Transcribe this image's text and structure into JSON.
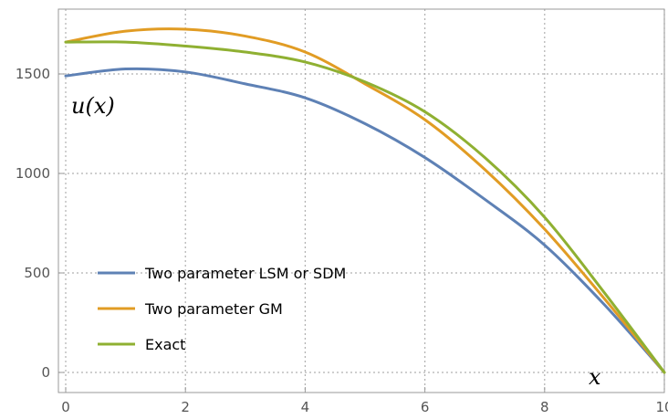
{
  "chart_data": {
    "type": "line",
    "title": "",
    "xlabel": "x",
    "ylabel": "u(x)",
    "xlim": [
      0,
      10
    ],
    "ylim": [
      0,
      1800
    ],
    "xticks": [
      "0",
      "2",
      "4",
      "6",
      "8",
      "10"
    ],
    "yticks": [
      "0",
      "500",
      "1000",
      "1500"
    ],
    "grid": true,
    "legend_position": "bottom-left",
    "series": [
      {
        "name": "Two parameter LSM or SDM",
        "color": "#5e81b5",
        "x": [
          0,
          1,
          2,
          3,
          4,
          5,
          6,
          7,
          8,
          9,
          10
        ],
        "y": [
          1490,
          1525,
          1510,
          1450,
          1380,
          1250,
          1080,
          870,
          640,
          340,
          0
        ]
      },
      {
        "name": "Two parameter GM",
        "color": "#e19c24",
        "x": [
          0,
          1,
          2,
          3,
          4,
          5,
          6,
          7,
          8,
          9,
          10
        ],
        "y": [
          1660,
          1715,
          1725,
          1690,
          1610,
          1450,
          1270,
          1020,
          720,
          370,
          0
        ]
      },
      {
        "name": "Exact",
        "color": "#8fb032",
        "x": [
          0,
          1,
          2,
          3,
          4,
          5,
          6,
          7,
          8,
          9,
          10
        ],
        "y": [
          1660,
          1660,
          1640,
          1610,
          1560,
          1460,
          1310,
          1080,
          780,
          400,
          0
        ]
      }
    ]
  }
}
